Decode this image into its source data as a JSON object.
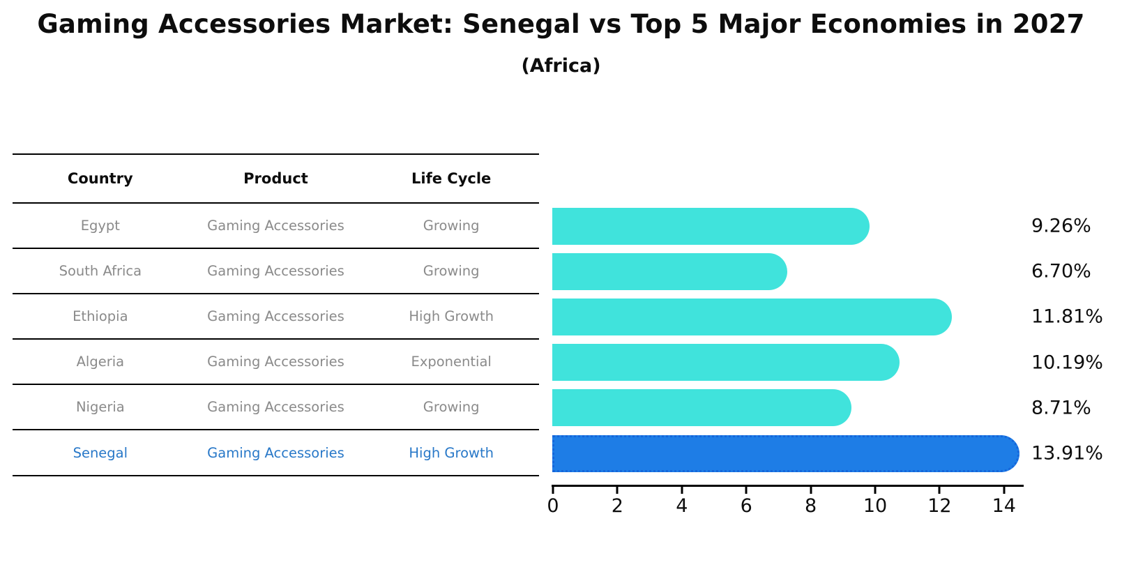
{
  "chart_data": {
    "type": "bar",
    "orientation": "horizontal",
    "title": "Gaming Accessories Market: Senegal vs Top 5 Major Economies in 2027",
    "subtitle": "(Africa)",
    "categories": [
      "Egypt",
      "South Africa",
      "Ethiopia",
      "Algeria",
      "Nigeria",
      "Senegal"
    ],
    "values": [
      9.26,
      6.7,
      11.81,
      10.19,
      8.71,
      13.91
    ],
    "value_labels": [
      "9.26%",
      "6.70%",
      "11.81%",
      "10.19%",
      "8.71%",
      "13.91%"
    ],
    "highlight_index": 5,
    "xlim": [
      0,
      14.6
    ],
    "x_ticks": [
      0,
      2,
      4,
      6,
      8,
      10,
      12,
      14
    ],
    "grid": "off",
    "legend": "none",
    "bar_color": "#40E3DC",
    "highlight_color": "#1E7DE6",
    "highlight_border_color": "#1566DB",
    "label_color": "#0d0d0d"
  },
  "table": {
    "headers": [
      "Country",
      "Product",
      "Life Cycle"
    ],
    "rows": [
      {
        "country": "Egypt",
        "product": "Gaming Accessories",
        "life_cycle": "Growing",
        "highlight": false
      },
      {
        "country": "South Africa",
        "product": "Gaming Accessories",
        "life_cycle": "Growing",
        "highlight": false
      },
      {
        "country": "Ethiopia",
        "product": "Gaming Accessories",
        "life_cycle": "High Growth",
        "highlight": false
      },
      {
        "country": "Algeria",
        "product": "Gaming Accessories",
        "life_cycle": "Exponential",
        "highlight": false
      },
      {
        "country": "Nigeria",
        "product": "Gaming Accessories",
        "life_cycle": "Growing",
        "highlight": false
      },
      {
        "country": "Senegal",
        "product": "Gaming Accessories",
        "life_cycle": "High Growth",
        "highlight": true
      }
    ],
    "text_color": "#8a8a8a",
    "highlight_text_color": "#2878C8"
  }
}
